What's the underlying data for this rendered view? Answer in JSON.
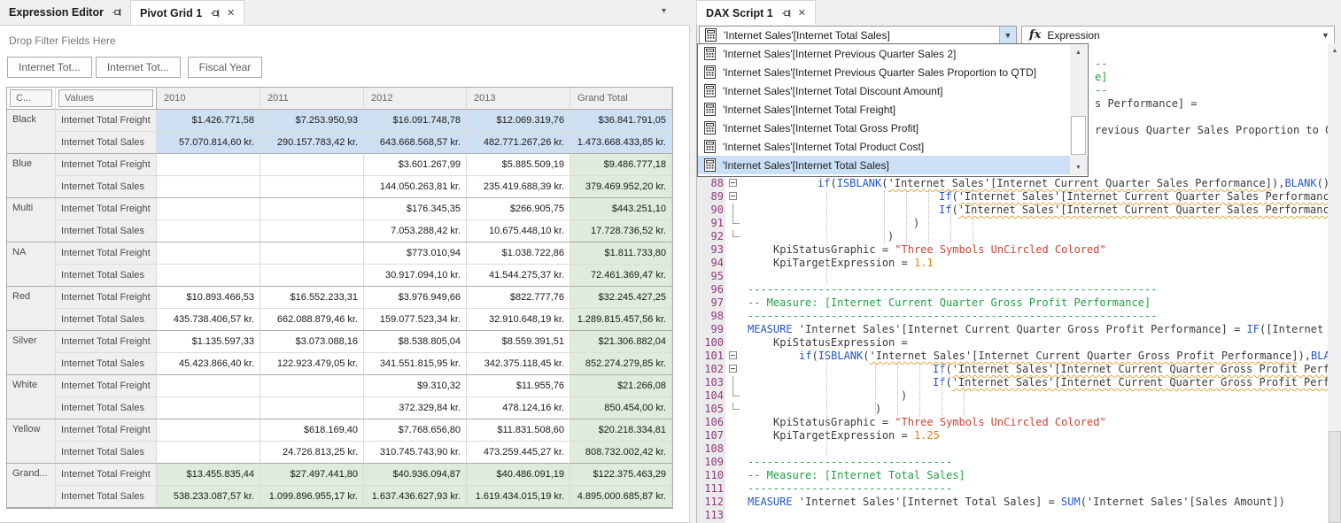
{
  "colors": {
    "highlight_blue": "#cfdff2",
    "highlight_green": "#dfecdb",
    "keyword_blue": "#2456c9",
    "comment_green": "#22a045",
    "string_red": "#cb4437",
    "number_orange": "#e8820e",
    "line_number_purple": "#8d3c7c",
    "selection_blue": "#cbdff6"
  },
  "left_panel": {
    "tabs": [
      {
        "label": "Expression Editor",
        "active": false,
        "icons": [
          "pin-icon"
        ]
      },
      {
        "label": "Pivot Grid 1",
        "active": true,
        "icons": [
          "pin-icon",
          "close-icon"
        ]
      }
    ],
    "filter_hint": "Drop Filter Fields Here",
    "filter_chips": [
      "Internet Tot...",
      "Internet Tot...",
      "Fiscal Year"
    ],
    "pivot": {
      "corner_headers": [
        "C...",
        "Values"
      ],
      "col_headers": [
        "2010",
        "2011",
        "2012",
        "2013",
        "Grand Total"
      ],
      "measure_labels": [
        "Internet Total Freight",
        "Internet Total Sales"
      ],
      "groups": [
        {
          "color": "Black",
          "highlight": "blue",
          "freight": [
            "$1.426.771,58",
            "$7.253.950,93",
            "$16.091.748,78",
            "$12.069.319,76",
            "$36.841.791,05"
          ],
          "sales": [
            "57.070.814,60 kr.",
            "290.157.783,42 kr.",
            "643.668.568,57 kr.",
            "482.771.267,26 kr.",
            "1.473.668.433,85 kr."
          ]
        },
        {
          "color": "Blue",
          "highlight": "none",
          "freight": [
            "",
            "",
            "$3.601.267,99",
            "$5.885.509,19",
            "$9.486.777,18"
          ],
          "sales": [
            "",
            "",
            "144.050.263,81 kr.",
            "235.419.688,39 kr.",
            "379.469.952,20 kr."
          ]
        },
        {
          "color": "Multi",
          "highlight": "none",
          "freight": [
            "",
            "",
            "$176.345,35",
            "$266.905,75",
            "$443.251,10"
          ],
          "sales": [
            "",
            "",
            "7.053.288,42 kr.",
            "10.675.448,10 kr.",
            "17.728.736,52 kr."
          ]
        },
        {
          "color": "NA",
          "highlight": "none",
          "freight": [
            "",
            "",
            "$773.010,94",
            "$1.038.722,86",
            "$1.811.733,80"
          ],
          "sales": [
            "",
            "",
            "30.917.094,10 kr.",
            "41.544.275,37 kr.",
            "72.461.369,47 kr."
          ]
        },
        {
          "color": "Red",
          "highlight": "none",
          "freight": [
            "$10.893.466,53",
            "$16.552.233,31",
            "$3.976.949,66",
            "$822.777,76",
            "$32.245.427,25"
          ],
          "sales": [
            "435.738.406,57 kr.",
            "662.088.879,46 kr.",
            "159.077.523,34 kr.",
            "32.910.648,19 kr.",
            "1.289.815.457,56 kr."
          ]
        },
        {
          "color": "Silver",
          "highlight": "none",
          "freight": [
            "$1.135.597,33",
            "$3.073.088,16",
            "$8.538.805,04",
            "$8.559.391,51",
            "$21.306.882,04"
          ],
          "sales": [
            "45.423.866,40 kr.",
            "122.923.479,05 kr.",
            "341.551.815,95 kr.",
            "342.375.118,45 kr.",
            "852.274.279,85 kr."
          ]
        },
        {
          "color": "White",
          "highlight": "none",
          "freight": [
            "",
            "",
            "$9.310,32",
            "$11.955,76",
            "$21.266,08"
          ],
          "sales": [
            "",
            "",
            "372.329,84 kr.",
            "478.124,16 kr.",
            "850.454,00 kr."
          ]
        },
        {
          "color": "Yellow",
          "highlight": "none",
          "freight": [
            "",
            "$618.169,40",
            "$7.768.656,80",
            "$11.831.508,60",
            "$20.218.334,81"
          ],
          "sales": [
            "",
            "24.726.813,25 kr.",
            "310.745.743,90 kr.",
            "473.259.445,27 kr.",
            "808.732.002,42 kr."
          ]
        },
        {
          "color": "Grand...",
          "highlight": "green",
          "freight": [
            "$13.455.835,44",
            "$27.497.441,80",
            "$40.936.094,87",
            "$40.486.091,19",
            "$122.375.463,29"
          ],
          "sales": [
            "538.233.087,57 kr.",
            "1.099.896.955,17 kr.",
            "1.637.436.627,93 kr.",
            "1.619.434.015,19 kr.",
            "4.895.000.685,87 kr."
          ]
        }
      ]
    }
  },
  "right_panel": {
    "tab": {
      "label": "DAX Script 1",
      "icons": [
        "pin-icon",
        "close-icon"
      ]
    },
    "measure_combo": {
      "icon": "calculator-icon",
      "value": "'Internet Sales'[Internet Total Sales]"
    },
    "fx_combo": {
      "icon": "fx-icon",
      "value": "Expression"
    },
    "dropdown": {
      "items": [
        "'Internet Sales'[Internet Previous Quarter Sales 2]",
        "'Internet Sales'[Internet Previous Quarter Sales Proportion to QTD]",
        "'Internet Sales'[Internet Total Discount Amount]",
        "'Internet Sales'[Internet Total Freight]",
        "'Internet Sales'[Internet Total Gross Profit]",
        "'Internet Sales'[Internet Total Product Cost]",
        "'Internet Sales'[Internet Total Sales]"
      ],
      "selected_index": 6
    },
    "code_lines": [
      {
        "n": 78
      },
      {
        "n": 79,
        "fragx": 449,
        "tk": [
          [
            "c",
            "--"
          ]
        ]
      },
      {
        "n": 80,
        "fragx": 449,
        "tk": [
          [
            "c",
            "e]"
          ]
        ]
      },
      {
        "n": 81,
        "fragx": 449,
        "tk": [
          [
            "c",
            "--"
          ]
        ]
      },
      {
        "n": 82,
        "fragx": 449,
        "tk": [
          [
            "t",
            "s Performance] ="
          ]
        ]
      },
      {
        "n": 83
      },
      {
        "n": 84,
        "fragx": 449,
        "tk": [
          [
            "t",
            "revious Quarter Sales Proportion to QTD"
          ]
        ]
      },
      {
        "n": 85
      },
      {
        "n": 86
      },
      {
        "n": 87
      },
      {
        "n": 88,
        "ind": 79,
        "fold": "s",
        "tk": [
          [
            "k",
            "if"
          ],
          [
            "t",
            "("
          ],
          [
            "k",
            "ISBLANK"
          ],
          [
            "t",
            "("
          ],
          [
            "w",
            "'Internet Sales'[Internet Current Quarter Sales Performance]"
          ],
          [
            "t",
            "),"
          ],
          [
            "k",
            "BLANK"
          ],
          [
            "t",
            "(),"
          ]
        ]
      },
      {
        "n": 89,
        "ind": 216,
        "fold": "s",
        "tk": [
          [
            "k",
            "If"
          ],
          [
            "t",
            "("
          ],
          [
            "w",
            "'Internet Sales'[Internet Current Quarter Sales Performance]"
          ],
          [
            "t",
            ","
          ]
        ]
      },
      {
        "n": 90,
        "ind": 216,
        "fold": "m",
        "tk": [
          [
            "k",
            "If"
          ],
          [
            "t",
            "("
          ],
          [
            "w",
            "'Internet Sales'[Internet Current Quarter Sales Performance]"
          ],
          [
            "t",
            ","
          ]
        ]
      },
      {
        "n": 91,
        "ind": 187,
        "fold": "e",
        "tk": [
          [
            "t",
            ")"
          ]
        ]
      },
      {
        "n": 92,
        "ind": 158,
        "fold": "e",
        "tk": [
          [
            "t",
            ")"
          ]
        ]
      },
      {
        "n": 93,
        "ind": 29,
        "tk": [
          [
            "t",
            "KpiStatusGraphic = "
          ],
          [
            "s",
            "\"Three Symbols UnCircled Colored\""
          ]
        ]
      },
      {
        "n": 94,
        "ind": 29,
        "tk": [
          [
            "t",
            "KpiTargetExpression = "
          ],
          [
            "n",
            "1.1"
          ]
        ]
      },
      {
        "n": 95
      },
      {
        "n": 96,
        "tk": [
          [
            "c",
            "----------------------------------------------------------------"
          ]
        ]
      },
      {
        "n": 97,
        "tk": [
          [
            "c",
            "-- Measure: [Internet Current Quarter Gross Profit Performance]"
          ]
        ]
      },
      {
        "n": 98,
        "tk": [
          [
            "c",
            "----------------------------------------------------------------"
          ]
        ]
      },
      {
        "n": 99,
        "tk": [
          [
            "k",
            "MEASURE"
          ],
          [
            "t",
            " 'Internet Sales'[Internet Current Quarter Gross Profit Performance] = "
          ],
          [
            "k",
            "IF"
          ],
          [
            "t",
            "([Internet Pr"
          ]
        ]
      },
      {
        "n": 100,
        "ind": 29,
        "tk": [
          [
            "t",
            "KpiStatusExpression ="
          ]
        ]
      },
      {
        "n": 101,
        "ind": 58,
        "fold": "s",
        "tk": [
          [
            "k",
            "if"
          ],
          [
            "t",
            "("
          ],
          [
            "k",
            "ISBLANK"
          ],
          [
            "t",
            "("
          ],
          [
            "w",
            "'Internet Sales'[Internet Current Quarter Gross Profit Performance]"
          ],
          [
            "t",
            "),"
          ],
          [
            "k",
            "BLANK"
          ]
        ]
      },
      {
        "n": 102,
        "ind": 209,
        "fold": "s",
        "tk": [
          [
            "k",
            "If"
          ],
          [
            "t",
            "("
          ],
          [
            "w",
            "'Internet Sales'[Internet Current Quarter Gross Profit Performance]"
          ],
          [
            "t",
            ","
          ]
        ]
      },
      {
        "n": 103,
        "ind": 209,
        "fold": "m",
        "tk": [
          [
            "k",
            "If"
          ],
          [
            "t",
            "("
          ],
          [
            "w",
            "'Internet Sales'[Internet Current Quarter Gross Profit Performance]"
          ],
          [
            "t",
            ","
          ]
        ]
      },
      {
        "n": 104,
        "ind": 173,
        "fold": "e",
        "tk": [
          [
            "t",
            ")"
          ]
        ]
      },
      {
        "n": 105,
        "ind": 144,
        "fold": "e",
        "tk": [
          [
            "t",
            ")"
          ]
        ]
      },
      {
        "n": 106,
        "ind": 29,
        "tk": [
          [
            "t",
            "KpiStatusGraphic = "
          ],
          [
            "s",
            "\"Three Symbols UnCircled Colored\""
          ]
        ]
      },
      {
        "n": 107,
        "ind": 29,
        "tk": [
          [
            "t",
            "KpiTargetExpression = "
          ],
          [
            "n",
            "1.25"
          ]
        ]
      },
      {
        "n": 108
      },
      {
        "n": 109,
        "tk": [
          [
            "c",
            "--------------------------------"
          ]
        ]
      },
      {
        "n": 110,
        "tk": [
          [
            "c",
            "-- Measure: [Internet Total Sales]"
          ]
        ]
      },
      {
        "n": 111,
        "tk": [
          [
            "c",
            "--------------------------------"
          ]
        ]
      },
      {
        "n": 112,
        "tk": [
          [
            "k",
            "MEASURE"
          ],
          [
            "t",
            " 'Internet Sales'[Internet Total Sales] = "
          ],
          [
            "k",
            "SUM"
          ],
          [
            "t",
            "('Internet Sales'[Sales Amount])"
          ]
        ]
      },
      {
        "n": 113
      }
    ]
  }
}
